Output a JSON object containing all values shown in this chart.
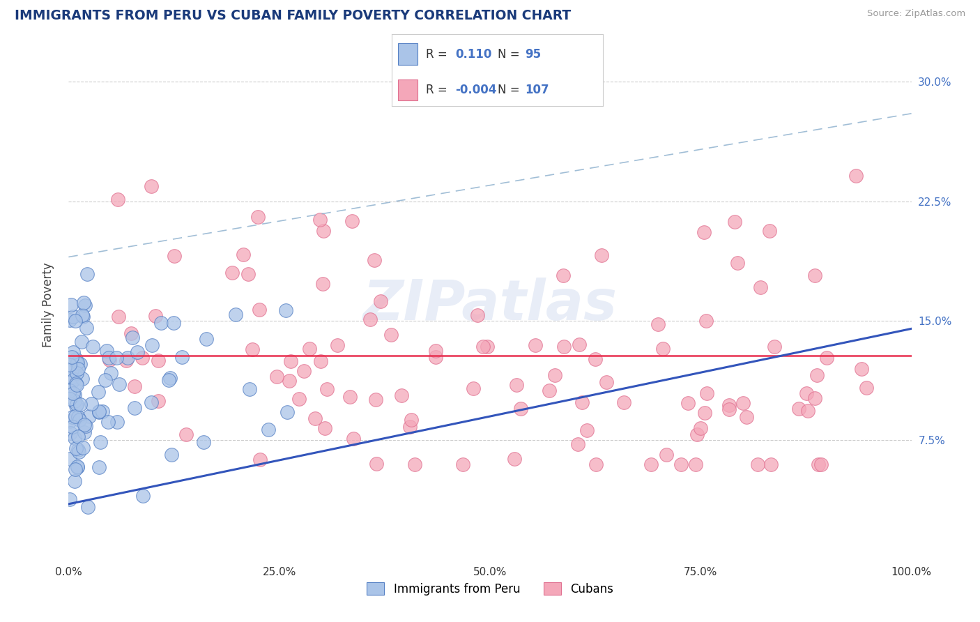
{
  "title": "IMMIGRANTS FROM PERU VS CUBAN FAMILY POVERTY CORRELATION CHART",
  "source": "Source: ZipAtlas.com",
  "ylabel": "Family Poverty",
  "xlim": [
    0,
    100
  ],
  "ylim": [
    0,
    32
  ],
  "yticks": [
    7.5,
    15.0,
    22.5,
    30.0
  ],
  "ytick_labels": [
    "7.5%",
    "15.0%",
    "22.5%",
    "30.0%"
  ],
  "xticks": [
    0,
    25,
    50,
    75,
    100
  ],
  "xtick_labels": [
    "0.0%",
    "25.0%",
    "50.0%",
    "75.0%",
    "100.0%"
  ],
  "peru_color": "#aac4e8",
  "cuba_color": "#f4a7b9",
  "peru_edge": "#5580c4",
  "cuba_edge": "#e07090",
  "trend_peru_color": "#3355bb",
  "trend_cuba_color": "#e83050",
  "R_peru": 0.11,
  "N_peru": 95,
  "R_cuba": -0.004,
  "N_cuba": 107,
  "legend_peru": "Immigrants from Peru",
  "legend_cuba": "Cubans",
  "watermark": "ZIPatlas",
  "background_color": "#ffffff",
  "grid_color": "#cccccc",
  "title_color": "#1a3a7a",
  "axis_label_color": "#444444",
  "legend_R_color": "#4472c4",
  "trend_peru_start_x": 0,
  "trend_peru_start_y": 3.5,
  "trend_peru_end_x": 100,
  "trend_peru_end_y": 14.5,
  "trend_cuba_y": 12.8
}
